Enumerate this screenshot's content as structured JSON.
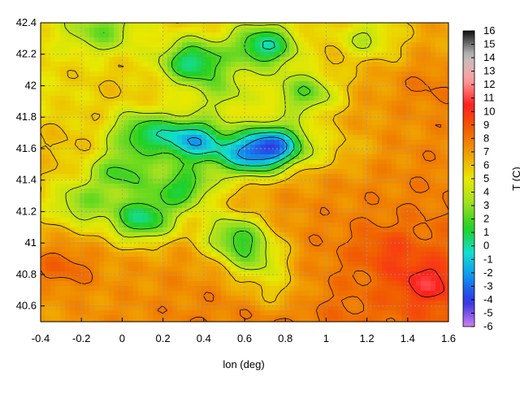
{
  "chart_data": {
    "type": "heatmap",
    "title": "",
    "xlabel": "lon (deg)",
    "ylabel": "",
    "xlim": [
      -0.4,
      1.6
    ],
    "ylim": [
      40.5,
      42.4
    ],
    "x_ticks": [
      "-0.4",
      "-0.2",
      "0",
      "0.2",
      "0.4",
      "0.6",
      "0.8",
      "1",
      "1.2",
      "1.4",
      "1.6"
    ],
    "y_ticks": [
      "40.6",
      "40.8",
      "41",
      "41.2",
      "41.4",
      "41.6",
      "41.8",
      "42",
      "42.2",
      "42.4"
    ],
    "grid": true,
    "contours": true,
    "colorbar": {
      "label": "T (C)",
      "range": [
        -6,
        16
      ],
      "ticks": [
        "-6",
        "-5",
        "-4",
        "-3",
        "-2",
        "-1",
        "0",
        "1",
        "2",
        "3",
        "4",
        "5",
        "6",
        "7",
        "8",
        "9",
        "10",
        "11",
        "12",
        "13",
        "14",
        "15",
        "16"
      ]
    },
    "palette": [
      "#d080f0",
      "#3030e0",
      "#1090f0",
      "#10e0d0",
      "#20d020",
      "#a0e020",
      "#e8e800",
      "#f0a000",
      "#f06000",
      "#ff2020",
      "#ffa0a0",
      "#c0c0c0",
      "#101010"
    ],
    "features": [
      {
        "lon": 0.75,
        "lat": 41.62,
        "value": -2.5
      },
      {
        "lon": 0.35,
        "lat": 41.65,
        "value": -1.5
      },
      {
        "lon": 0.6,
        "lat": 41.55,
        "value": 0.5
      },
      {
        "lon": 0.1,
        "lat": 41.7,
        "value": 1.5
      },
      {
        "lon": 0.0,
        "lat": 41.45,
        "value": 2.0
      },
      {
        "lon": 0.3,
        "lat": 41.35,
        "value": 1.0
      },
      {
        "lon": 0.1,
        "lat": 41.15,
        "value": 0.0
      },
      {
        "lon": 0.55,
        "lat": 41.05,
        "value": 1.5
      },
      {
        "lon": 0.65,
        "lat": 40.9,
        "value": 3.0
      },
      {
        "lon": -0.2,
        "lat": 41.25,
        "value": 3.0
      },
      {
        "lon": 0.9,
        "lat": 41.95,
        "value": 2.0
      },
      {
        "lon": 0.7,
        "lat": 42.25,
        "value": 0.0
      },
      {
        "lon": 0.35,
        "lat": 42.15,
        "value": 0.5
      },
      {
        "lon": 1.2,
        "lat": 42.3,
        "value": 4.0
      },
      {
        "lon": -0.1,
        "lat": 42.35,
        "value": 3.5
      },
      {
        "lon": 0.5,
        "lat": 41.95,
        "value": 4.0
      },
      {
        "lon": 1.05,
        "lat": 41.6,
        "value": 5.5
      },
      {
        "lon": 1.5,
        "lat": 40.75,
        "value": 9.5
      },
      {
        "lon": 1.3,
        "lat": 40.95,
        "value": 8.5
      },
      {
        "lon": -0.3,
        "lat": 40.85,
        "value": 9.0
      },
      {
        "lon": 0.0,
        "lat": 40.6,
        "value": 7.0
      },
      {
        "lon": 0.75,
        "lat": 40.7,
        "value": 5.0
      },
      {
        "lon": 1.5,
        "lat": 42.0,
        "value": 8.0
      },
      {
        "lon": -0.3,
        "lat": 41.9,
        "value": 6.5
      }
    ]
  }
}
